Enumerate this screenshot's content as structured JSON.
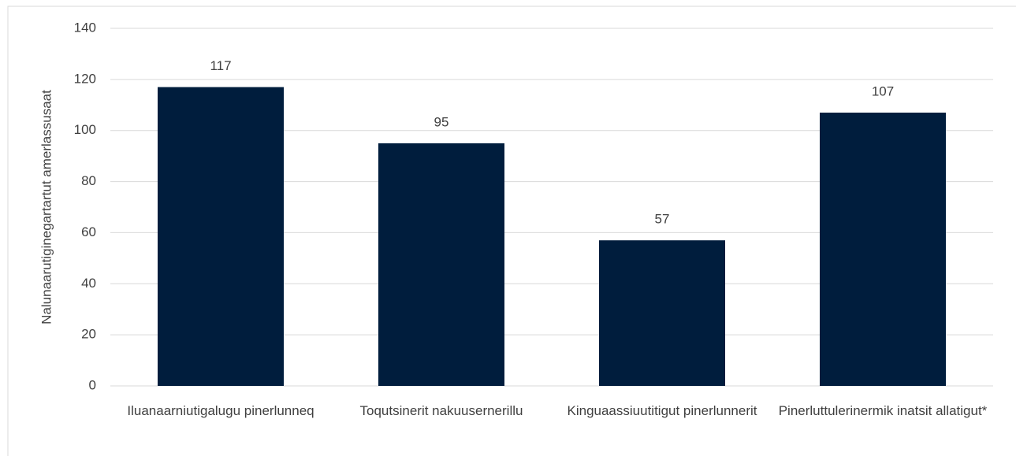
{
  "chart_data": {
    "type": "bar",
    "y_label": "Nalunaarutiginegartartut amerlassusaat",
    "categories": [
      "Iluanaarniutigalugu pinerlunneq",
      "Toqutsinerit nakuusernerillu",
      "Kinguaassiuutitigut pinerlunnerit",
      "Pinerluttulerinermik inatsit allatigut*"
    ],
    "values": [
      117,
      95,
      57,
      107
    ],
    "color": "#001d3d",
    "ylim": [
      0,
      140
    ],
    "yticks": [
      0,
      20,
      40,
      60,
      80,
      100,
      120,
      140
    ],
    "grid": true,
    "data_labels": true
  }
}
